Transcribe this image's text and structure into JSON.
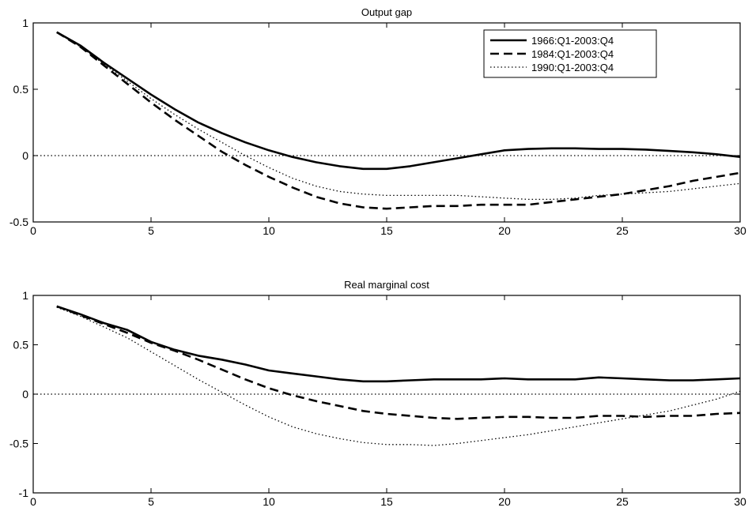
{
  "chart_data": [
    {
      "type": "line",
      "title": "Output gap",
      "xlabel": "",
      "ylabel": "",
      "xlim": [
        0,
        30
      ],
      "ylim": [
        -0.5,
        1
      ],
      "xticks": [
        0,
        5,
        10,
        15,
        20,
        25,
        30
      ],
      "yticks": [
        -0.5,
        0,
        0.5,
        1
      ],
      "xtick_labels": [
        "0",
        "5",
        "10",
        "15",
        "20",
        "25",
        "30"
      ],
      "ytick_labels": [
        "-0.5",
        "0",
        "0.5",
        "1"
      ],
      "grid": false,
      "legend": "top-right",
      "zero_line": true,
      "x": [
        1,
        2,
        3,
        4,
        5,
        6,
        7,
        8,
        9,
        10,
        11,
        12,
        13,
        14,
        15,
        16,
        17,
        18,
        19,
        20,
        21,
        22,
        23,
        24,
        25,
        26,
        27,
        28,
        29,
        30
      ],
      "series": [
        {
          "name": "1966:Q1-2003:Q4",
          "style": "solid",
          "values": [
            0.93,
            0.83,
            0.7,
            0.58,
            0.46,
            0.35,
            0.25,
            0.17,
            0.1,
            0.04,
            -0.01,
            -0.05,
            -0.08,
            -0.1,
            -0.1,
            -0.08,
            -0.05,
            -0.02,
            0.01,
            0.04,
            0.05,
            0.055,
            0.055,
            0.05,
            0.05,
            0.045,
            0.035,
            0.025,
            0.01,
            -0.01
          ]
        },
        {
          "name": "1984:Q1-2003:Q4",
          "style": "dashed",
          "values": [
            0.93,
            0.82,
            0.68,
            0.54,
            0.4,
            0.27,
            0.15,
            0.03,
            -0.07,
            -0.16,
            -0.24,
            -0.31,
            -0.36,
            -0.39,
            -0.4,
            -0.39,
            -0.38,
            -0.38,
            -0.37,
            -0.37,
            -0.37,
            -0.35,
            -0.33,
            -0.31,
            -0.29,
            -0.26,
            -0.23,
            -0.19,
            -0.16,
            -0.13
          ]
        },
        {
          "name": "1990:Q1-2003:Q4",
          "style": "dotted",
          "values": [
            0.93,
            0.82,
            0.69,
            0.56,
            0.43,
            0.31,
            0.2,
            0.1,
            0.0,
            -0.09,
            -0.17,
            -0.23,
            -0.27,
            -0.29,
            -0.3,
            -0.3,
            -0.3,
            -0.3,
            -0.31,
            -0.32,
            -0.33,
            -0.33,
            -0.32,
            -0.3,
            -0.29,
            -0.28,
            -0.27,
            -0.25,
            -0.23,
            -0.21
          ]
        }
      ]
    },
    {
      "type": "line",
      "title": "Real marginal cost",
      "xlabel": "",
      "ylabel": "",
      "xlim": [
        0,
        30
      ],
      "ylim": [
        -1,
        1
      ],
      "xticks": [
        0,
        5,
        10,
        15,
        20,
        25,
        30
      ],
      "yticks": [
        -1,
        -0.5,
        0,
        0.5,
        1
      ],
      "xtick_labels": [
        "0",
        "5",
        "10",
        "15",
        "20",
        "25",
        "30"
      ],
      "ytick_labels": [
        "-1",
        "-0.5",
        "0",
        "0.5",
        "1"
      ],
      "grid": false,
      "legend": "none",
      "zero_line": true,
      "x": [
        1,
        2,
        3,
        4,
        5,
        6,
        7,
        8,
        9,
        10,
        11,
        12,
        13,
        14,
        15,
        16,
        17,
        18,
        19,
        20,
        21,
        22,
        23,
        24,
        25,
        26,
        27,
        28,
        29,
        30
      ],
      "series": [
        {
          "name": "1966:Q1-2003:Q4",
          "style": "solid",
          "values": [
            0.89,
            0.81,
            0.72,
            0.65,
            0.53,
            0.45,
            0.39,
            0.35,
            0.3,
            0.24,
            0.21,
            0.18,
            0.15,
            0.13,
            0.13,
            0.14,
            0.15,
            0.15,
            0.15,
            0.16,
            0.15,
            0.15,
            0.15,
            0.17,
            0.16,
            0.15,
            0.14,
            0.14,
            0.15,
            0.16
          ]
        },
        {
          "name": "1984:Q1-2003:Q4",
          "style": "dashed",
          "values": [
            0.89,
            0.8,
            0.71,
            0.62,
            0.52,
            0.44,
            0.35,
            0.25,
            0.15,
            0.06,
            -0.01,
            -0.07,
            -0.12,
            -0.17,
            -0.2,
            -0.22,
            -0.24,
            -0.25,
            -0.24,
            -0.23,
            -0.23,
            -0.24,
            -0.24,
            -0.22,
            -0.22,
            -0.23,
            -0.22,
            -0.22,
            -0.2,
            -0.19
          ]
        },
        {
          "name": "1990:Q1-2003:Q4",
          "style": "dotted",
          "values": [
            0.88,
            0.79,
            0.68,
            0.57,
            0.43,
            0.29,
            0.15,
            0.02,
            -0.11,
            -0.23,
            -0.33,
            -0.4,
            -0.45,
            -0.49,
            -0.51,
            -0.51,
            -0.52,
            -0.5,
            -0.47,
            -0.44,
            -0.41,
            -0.37,
            -0.33,
            -0.29,
            -0.25,
            -0.21,
            -0.17,
            -0.11,
            -0.05,
            0.03
          ]
        }
      ]
    }
  ]
}
